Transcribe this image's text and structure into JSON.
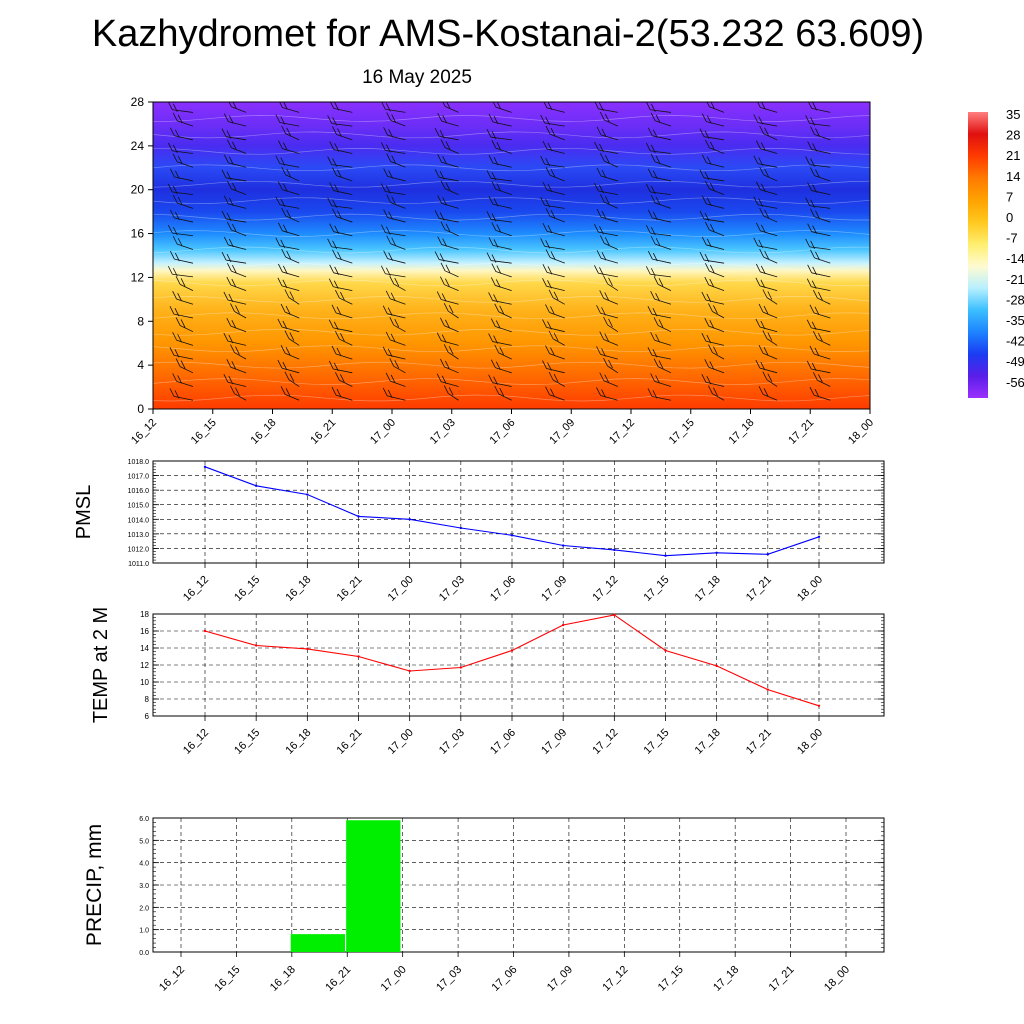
{
  "header": {
    "title": "Kazhydromet for AMS-Kostanai-2(53.232 63.609)",
    "subtitle": "16 May 2025"
  },
  "chart_data": [
    {
      "type": "heatmap",
      "name_hint": "cross-section",
      "x_ticks": [
        "16_12",
        "16_15",
        "16_18",
        "16_21",
        "17_00",
        "17_03",
        "17_06",
        "17_09",
        "17_12",
        "17_15",
        "17_18",
        "17_21",
        "18_00"
      ],
      "y_ticks": [
        0,
        4,
        8,
        12,
        16,
        20,
        24,
        28
      ],
      "ylim": [
        0,
        28
      ],
      "colorbar": {
        "labels": [
          "35",
          "28",
          "21",
          "14",
          "7",
          "0",
          "-7",
          "-14",
          "-21",
          "-28",
          "-35",
          "-42",
          "-49",
          "-56"
        ],
        "colors": [
          "#ff7f7f",
          "#e01010",
          "#ff3b00",
          "#ff7a00",
          "#ffa200",
          "#ffc81e",
          "#ffee6e",
          "#fffbd0",
          "#b8f0ff",
          "#3cbfff",
          "#1d84ff",
          "#1a3cf2",
          "#5a1ee8",
          "#9b30ff"
        ]
      },
      "level_colors": [
        {
          "level": 0,
          "color": "#ff3b00"
        },
        {
          "level": 3,
          "color": "#ff6a00"
        },
        {
          "level": 6,
          "color": "#ff9600"
        },
        {
          "level": 9,
          "color": "#ffb21a"
        },
        {
          "level": 11.5,
          "color": "#ffd84a"
        },
        {
          "level": 12.6,
          "color": "#fff6c0"
        },
        {
          "level": 13.3,
          "color": "#c8f2ff"
        },
        {
          "level": 14.5,
          "color": "#4cc7ff"
        },
        {
          "level": 16,
          "color": "#1e8cff"
        },
        {
          "level": 18,
          "color": "#1a48ee"
        },
        {
          "level": 20,
          "color": "#1f2fe0"
        },
        {
          "level": 22,
          "color": "#2a4af5"
        },
        {
          "level": 24,
          "color": "#4a2cf0"
        },
        {
          "level": 26,
          "color": "#6e2ef8"
        },
        {
          "level": 28,
          "color": "#8a30ff"
        }
      ],
      "grid": false
    },
    {
      "type": "line",
      "ylabel": "PMSL",
      "x": [
        "16_12",
        "16_15",
        "16_18",
        "16_21",
        "17_00",
        "17_03",
        "17_06",
        "17_09",
        "17_12",
        "17_15",
        "17_18",
        "17_21",
        "18_00"
      ],
      "series": [
        {
          "values": [
            1017.6,
            1016.3,
            1015.7,
            1014.2,
            1014.0,
            1013.4,
            1012.9,
            1012.2,
            1011.9,
            1011.5,
            1011.7,
            1011.6,
            1012.8
          ],
          "color": "#0000ff"
        }
      ],
      "ylim": [
        1011.0,
        1018.0
      ],
      "y_ticks": [
        "1011.0",
        "1012.0",
        "1013.0",
        "1014.0",
        "1015.0",
        "1016.0",
        "1017.0",
        "1018.0"
      ],
      "grid": true
    },
    {
      "type": "line",
      "ylabel": "TEMP at 2 M",
      "x": [
        "16_12",
        "16_15",
        "16_18",
        "16_21",
        "17_00",
        "17_03",
        "17_06",
        "17_09",
        "17_12",
        "17_15",
        "17_18",
        "17_21",
        "18_00"
      ],
      "series": [
        {
          "values": [
            16.0,
            14.3,
            13.9,
            13.0,
            11.3,
            11.7,
            13.7,
            16.7,
            17.9,
            13.7,
            11.9,
            9.1,
            7.2
          ],
          "color": "#ff0000"
        }
      ],
      "ylim": [
        6,
        18
      ],
      "y_ticks": [
        "6",
        "8",
        "10",
        "12",
        "14",
        "16",
        "18"
      ],
      "grid": true
    },
    {
      "type": "bar",
      "ylabel": "PRECIP, mm",
      "categories": [
        "16_12",
        "16_15",
        "16_18",
        "16_21",
        "17_00",
        "17_03",
        "17_06",
        "17_09",
        "17_12",
        "17_15",
        "17_18",
        "17_21",
        "18_00"
      ],
      "values": [
        0,
        0,
        0,
        0.8,
        5.9,
        0,
        0,
        0,
        0,
        0,
        0,
        0,
        0
      ],
      "color": "#00ee00",
      "ylim": [
        0,
        6.0
      ],
      "y_ticks": [
        "0.0",
        "1.0",
        "2.0",
        "3.0",
        "4.0",
        "5.0",
        "6.0"
      ],
      "grid": true
    }
  ]
}
